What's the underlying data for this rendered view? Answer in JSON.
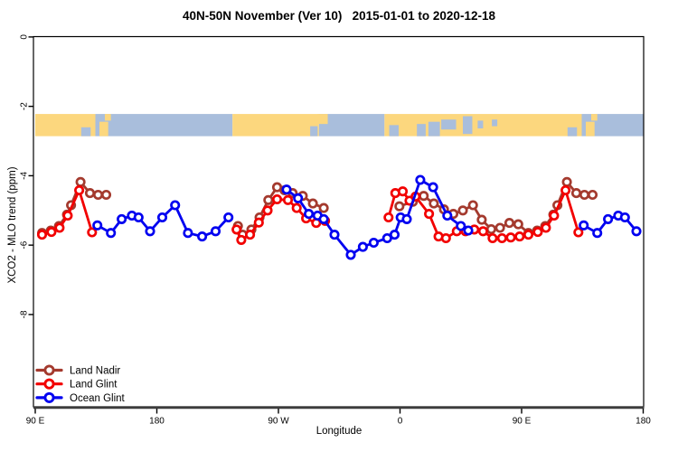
{
  "title": "40N-50N November (Ver 10)   2015-01-01 to 2020-12-18",
  "chart_data": {
    "type": "line",
    "title": "40N-50N November (Ver 10)   2015-01-01 to 2020-12-18",
    "xlabel": "Longitude",
    "ylabel": "XCO2 - MLO trend (ppm)",
    "xlim": [
      90,
      540
    ],
    "ylim": [
      -10.66,
      0.01
    ],
    "grid": false,
    "legend_position": "bottom-left",
    "x_ticks": [
      {
        "value": 90,
        "label": "90 E"
      },
      {
        "value": 180,
        "label": "180"
      },
      {
        "value": 270,
        "label": "90 W"
      },
      {
        "value": 360,
        "label": "0"
      },
      {
        "value": 450,
        "label": "90 E"
      },
      {
        "value": 540,
        "label": "180"
      }
    ],
    "y_ticks": [
      {
        "value": 0,
        "label": "0"
      },
      {
        "value": -2,
        "label": "-2"
      },
      {
        "value": -4,
        "label": "-4"
      },
      {
        "value": -6,
        "label": "-6"
      },
      {
        "value": -8,
        "label": "-8"
      }
    ],
    "map_band": {
      "top_value": -2.22,
      "bottom_value": -2.86,
      "land_color": "#FCD77E",
      "ocean_color": "#A9BEDC",
      "base_segments": [
        {
          "from": 90,
          "to": 134.5,
          "type": "land"
        },
        {
          "from": 134.5,
          "to": 236,
          "type": "ocean"
        },
        {
          "from": 236,
          "to": 300,
          "type": "land"
        },
        {
          "from": 300,
          "to": 348.5,
          "type": "ocean"
        },
        {
          "from": 348.5,
          "to": 494.5,
          "type": "land"
        },
        {
          "from": 494.5,
          "to": 540,
          "type": "ocean"
        }
      ],
      "patches": [
        {
          "from": 137.5,
          "to": 144,
          "type": "land",
          "band": [
            0.35,
            1
          ]
        },
        {
          "from": 141.5,
          "to": 146,
          "type": "land",
          "band": [
            0,
            0.3
          ]
        },
        {
          "from": 124,
          "to": 131,
          "type": "ocean",
          "band": [
            0.6,
            1
          ]
        },
        {
          "from": 293.5,
          "to": 299,
          "type": "ocean",
          "band": [
            0.55,
            1
          ]
        },
        {
          "from": 299,
          "to": 306.5,
          "type": "land",
          "band": [
            0,
            0.45
          ]
        },
        {
          "from": 352,
          "to": 359,
          "type": "ocean",
          "band": [
            0.5,
            1
          ]
        },
        {
          "from": 372.5,
          "to": 379,
          "type": "ocean",
          "band": [
            0.45,
            1
          ]
        },
        {
          "from": 381,
          "to": 389.5,
          "type": "ocean",
          "band": [
            0.35,
            1
          ]
        },
        {
          "from": 390.5,
          "to": 401.5,
          "type": "ocean",
          "band": [
            0.25,
            0.7
          ]
        },
        {
          "from": 406.5,
          "to": 413.5,
          "type": "ocean",
          "band": [
            0.1,
            0.9
          ]
        },
        {
          "from": 417.5,
          "to": 421.5,
          "type": "ocean",
          "band": [
            0.3,
            0.65
          ]
        },
        {
          "from": 428,
          "to": 432,
          "type": "ocean",
          "band": [
            0.25,
            0.55
          ]
        },
        {
          "from": 484,
          "to": 491,
          "type": "ocean",
          "band": [
            0.6,
            1
          ]
        },
        {
          "from": 497.5,
          "to": 504,
          "type": "land",
          "band": [
            0.35,
            1
          ]
        },
        {
          "from": 501.5,
          "to": 506,
          "type": "land",
          "band": [
            0,
            0.3
          ]
        }
      ]
    },
    "series": [
      {
        "name": "Land Nadir",
        "color": "#A43A2E",
        "points": [
          [
            95,
            -5.65
          ],
          [
            101.5,
            -5.58
          ],
          [
            107.5,
            -5.45
          ],
          [
            113.5,
            -5.12
          ],
          [
            116.5,
            -4.85
          ],
          [
            123.5,
            -4.18
          ],
          [
            130.5,
            -4.5
          ],
          [
            136.5,
            -4.55
          ],
          [
            142.5,
            -4.55
          ],
          [
            240,
            -5.45
          ],
          [
            243.5,
            -5.7
          ],
          [
            250,
            -5.55
          ],
          [
            256,
            -5.2
          ],
          [
            262.5,
            -4.7
          ],
          [
            269,
            -4.33
          ],
          [
            274.5,
            -4.42
          ],
          [
            280.5,
            -4.5
          ],
          [
            288,
            -4.58
          ],
          [
            295.5,
            -4.8
          ],
          [
            303.5,
            -4.93
          ],
          [
            359.5,
            -4.88
          ],
          [
            369.5,
            -4.75
          ],
          [
            377.5,
            -4.58
          ],
          [
            385,
            -4.8
          ],
          [
            392.5,
            -4.97
          ],
          [
            399.5,
            -5.1
          ],
          [
            406.5,
            -5.0
          ],
          [
            414,
            -4.85
          ],
          [
            420.5,
            -5.27
          ],
          [
            427.5,
            -5.54
          ],
          [
            434,
            -5.5
          ],
          [
            441,
            -5.36
          ],
          [
            447.5,
            -5.4
          ],
          [
            455,
            -5.65
          ],
          [
            461.5,
            -5.58
          ],
          [
            467.5,
            -5.45
          ],
          [
            473.5,
            -5.12
          ],
          [
            476.5,
            -4.85
          ],
          [
            483.5,
            -4.18
          ],
          [
            490.5,
            -4.5
          ],
          [
            496.5,
            -4.55
          ],
          [
            502.5,
            -4.55
          ]
        ]
      },
      {
        "name": "Land Glint",
        "color": "#F20000",
        "points": [
          [
            95,
            -5.7
          ],
          [
            102,
            -5.62
          ],
          [
            108,
            -5.5
          ],
          [
            114,
            -5.15
          ],
          [
            122.5,
            -4.42
          ],
          [
            132,
            -5.63
          ],
          [
            239,
            -5.55
          ],
          [
            242.5,
            -5.85
          ],
          [
            249,
            -5.7
          ],
          [
            255.5,
            -5.35
          ],
          [
            262,
            -5.0
          ],
          [
            269,
            -4.68
          ],
          [
            277,
            -4.7
          ],
          [
            283.5,
            -4.93
          ],
          [
            290.5,
            -5.23
          ],
          [
            298,
            -5.36
          ],
          [
            304.5,
            -5.3
          ],
          [
            351.5,
            -5.2
          ],
          [
            356.5,
            -4.5
          ],
          [
            362,
            -4.45
          ],
          [
            367,
            -4.72
          ],
          [
            371.5,
            -4.6
          ],
          [
            381.5,
            -5.1
          ],
          [
            388.5,
            -5.75
          ],
          [
            394,
            -5.8
          ],
          [
            402,
            -5.6
          ],
          [
            408.5,
            -5.6
          ],
          [
            415,
            -5.55
          ],
          [
            421.5,
            -5.6
          ],
          [
            428.5,
            -5.8
          ],
          [
            435.5,
            -5.8
          ],
          [
            442,
            -5.78
          ],
          [
            448.5,
            -5.75
          ],
          [
            455,
            -5.7
          ],
          [
            462,
            -5.62
          ],
          [
            468,
            -5.5
          ],
          [
            474,
            -5.15
          ],
          [
            482.5,
            -4.42
          ],
          [
            492,
            -5.63
          ]
        ]
      },
      {
        "name": "Ocean Glint",
        "color": "#0000F0",
        "points": [
          [
            136,
            -5.43
          ],
          [
            146,
            -5.65
          ],
          [
            154,
            -5.25
          ],
          [
            161.5,
            -5.15
          ],
          [
            166.5,
            -5.2
          ],
          [
            175,
            -5.6
          ],
          [
            184,
            -5.2
          ],
          [
            193.5,
            -4.85
          ],
          [
            203,
            -5.65
          ],
          [
            213.5,
            -5.75
          ],
          [
            223.5,
            -5.6
          ],
          [
            233,
            -5.2
          ],
          [
            276,
            -4.4
          ],
          [
            284.5,
            -4.65
          ],
          [
            292.5,
            -5.1
          ],
          [
            299,
            -5.15
          ],
          [
            303.5,
            -5.25
          ],
          [
            311.5,
            -5.7
          ],
          [
            323.5,
            -6.28
          ],
          [
            332.5,
            -6.05
          ],
          [
            340.5,
            -5.93
          ],
          [
            350.5,
            -5.8
          ],
          [
            356,
            -5.7
          ],
          [
            360.5,
            -5.2
          ],
          [
            365,
            -5.25
          ],
          [
            375,
            -4.12
          ],
          [
            384.5,
            -4.33
          ],
          [
            395,
            -5.15
          ],
          [
            405,
            -5.45
          ],
          [
            410.5,
            -5.58
          ],
          [
            496,
            -5.43
          ],
          [
            506,
            -5.65
          ],
          [
            514,
            -5.25
          ],
          [
            521.5,
            -5.15
          ],
          [
            526.5,
            -5.2
          ],
          [
            535,
            -5.6
          ]
        ]
      }
    ]
  }
}
